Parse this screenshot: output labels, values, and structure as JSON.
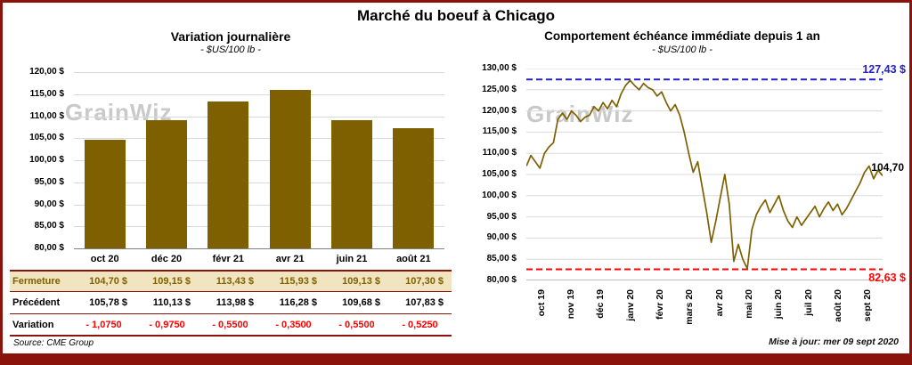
{
  "page": {
    "title": "Marché du boeuf à Chicago",
    "watermark": "GrainWiz",
    "source": "Source: CME Group",
    "updated": "Mise à jour: mer 09 sept 2020"
  },
  "colors": {
    "maroon": "#8a140c",
    "gold": "#7f6000",
    "tan": "#f1e4c0",
    "blue": "#2222c8",
    "red": "#ff0000",
    "grid": "#d9d9d9",
    "line": "#7f6000"
  },
  "chart_data": [
    {
      "type": "bar",
      "title": "Variation journalière",
      "subtitle": "- $US/100 lb -",
      "categories": [
        "oct 20",
        "déc 20",
        "févr 21",
        "avr 21",
        "juin 21",
        "août 21"
      ],
      "values": [
        104.7,
        109.15,
        113.43,
        115.93,
        109.13,
        107.3
      ],
      "ylim": [
        80,
        120
      ],
      "ytick_step": 5,
      "ytick_suffix": " $"
    },
    {
      "type": "line",
      "title": "Comportement échéance immédiate depuis 1 an",
      "subtitle": "- $US/100 lb -",
      "x_labels": [
        "oct 19",
        "nov 19",
        "déc 19",
        "janv 20",
        "févr 20",
        "mars 20",
        "avr 20",
        "mai 20",
        "juin 20",
        "juil 20",
        "août 20",
        "sept 20"
      ],
      "values": [
        107.0,
        109.5,
        108.0,
        106.5,
        110.0,
        111.5,
        112.5,
        118.0,
        119.5,
        118.0,
        120.0,
        119.0,
        117.5,
        118.5,
        119.0,
        121.0,
        120.0,
        122.0,
        120.5,
        122.5,
        121.0,
        124.0,
        126.0,
        127.2,
        126.0,
        125.0,
        126.5,
        125.5,
        125.0,
        123.5,
        124.5,
        122.0,
        120.0,
        121.5,
        119.0,
        115.0,
        110.0,
        105.5,
        108.0,
        102.0,
        96.0,
        89.0,
        94.0,
        99.5,
        105.0,
        98.0,
        84.5,
        88.5,
        85.0,
        82.8,
        92.0,
        95.5,
        97.5,
        99.0,
        96.0,
        98.0,
        100.0,
        96.5,
        94.0,
        92.5,
        95.0,
        93.0,
        94.5,
        96.0,
        97.5,
        95.0,
        97.0,
        98.5,
        96.5,
        98.0,
        95.5,
        97.0,
        99.0,
        101.0,
        103.0,
        105.5,
        107.0,
        104.0,
        106.0,
        104.7
      ],
      "ylim": [
        80,
        130
      ],
      "ytick_step": 5,
      "high_line": 127.43,
      "low_line": 82.63,
      "high_label": "127,43 $",
      "low_label": "82,63 $",
      "last_label": "104,70"
    }
  ],
  "table": {
    "rows": [
      {
        "label": "Fermeture",
        "style": "fermeture",
        "values": [
          "104,70 $",
          "109,15 $",
          "113,43 $",
          "115,93 $",
          "109,13 $",
          "107,30 $"
        ]
      },
      {
        "label": "Précédent",
        "style": "precedent",
        "values": [
          "105,78 $",
          "110,13 $",
          "113,98 $",
          "116,28 $",
          "109,68 $",
          "107,83 $"
        ]
      },
      {
        "label": "Variation",
        "style": "variation",
        "values": [
          "- 1,0750",
          "- 0,9750",
          "- 0,5500",
          "- 0,3500",
          "- 0,5500",
          "- 0,5250"
        ]
      }
    ]
  }
}
